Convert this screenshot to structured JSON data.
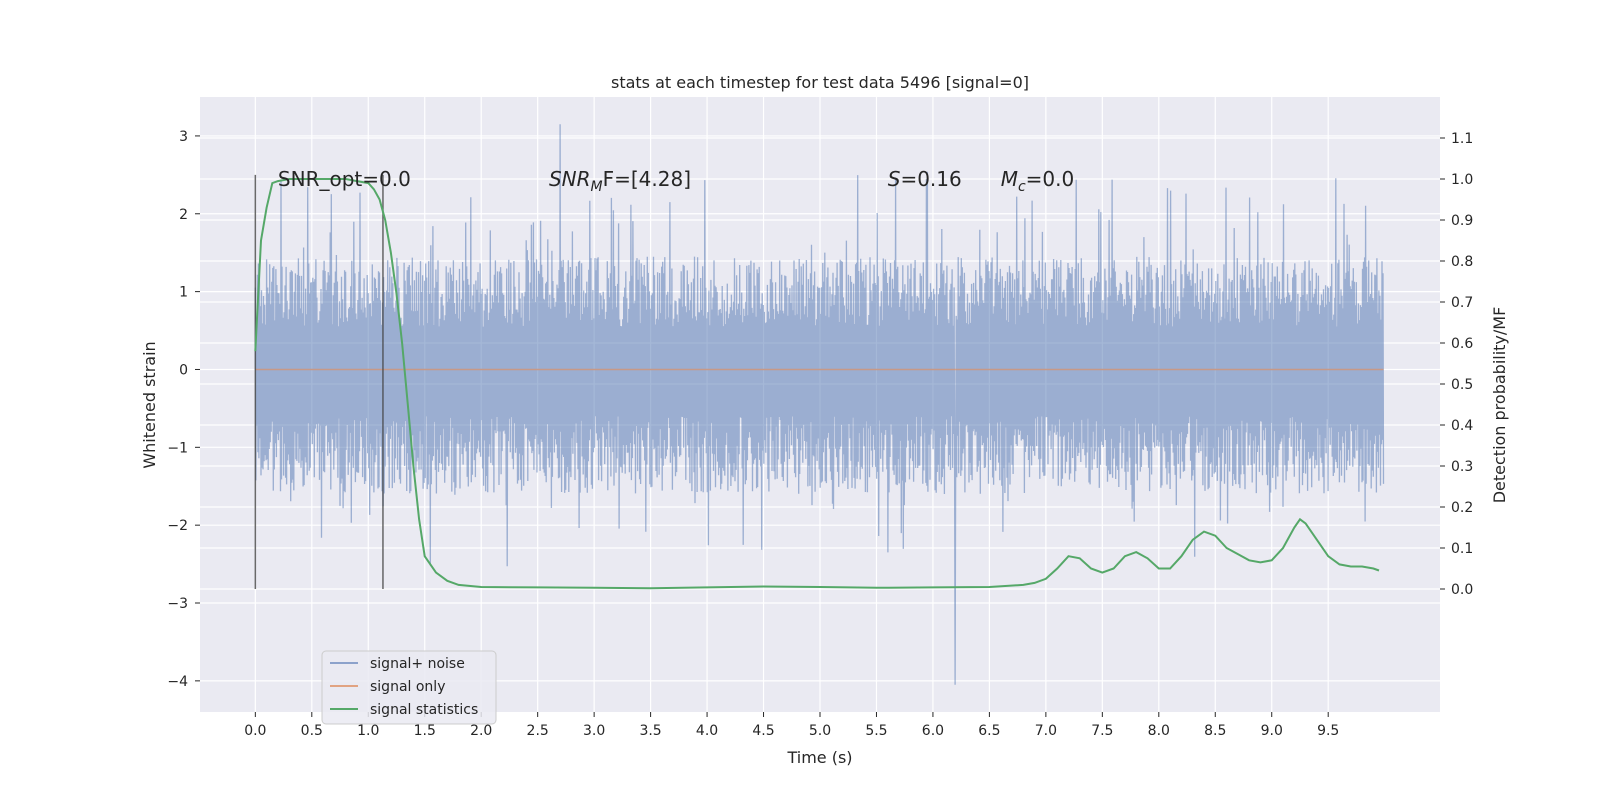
{
  "chart_data": {
    "type": "line",
    "title": "stats at each timestep for test data 5496 [signal=0]",
    "xlabel": "Time (s)",
    "ylabel": "Whitened strain",
    "ylabel_right": "Detection probability/MF",
    "xlim": [
      -0.49,
      10.49
    ],
    "ylim": [
      -4.4,
      3.5
    ],
    "ylim_right": [
      -0.3,
      1.2
    ],
    "x_ticks": [
      0.0,
      0.5,
      1.0,
      1.5,
      2.0,
      2.5,
      3.0,
      3.5,
      4.0,
      4.5,
      5.0,
      5.5,
      6.0,
      6.5,
      7.0,
      7.5,
      8.0,
      8.5,
      9.0,
      9.5
    ],
    "x_tick_labels": [
      "0.0",
      "0.5",
      "1.0",
      "1.5",
      "2.0",
      "2.5",
      "3.0",
      "3.5",
      "4.0",
      "4.5",
      "5.0",
      "5.5",
      "6.0",
      "6.5",
      "7.0",
      "7.5",
      "8.0",
      "8.5",
      "9.0",
      "9.5"
    ],
    "y_ticks": [
      -4,
      -3,
      -2,
      -1,
      0,
      1,
      2,
      3
    ],
    "y_tick_labels": [
      "−4",
      "−3",
      "−2",
      "−1",
      "0",
      "1",
      "2",
      "3"
    ],
    "y_right_ticks": [
      0.0,
      0.1,
      0.2,
      0.3,
      0.4,
      0.5,
      0.6,
      0.7,
      0.8,
      0.9,
      1.0,
      1.1
    ],
    "y_right_tick_labels": [
      "0.0",
      "0.1",
      "0.2",
      "0.3",
      "0.4",
      "0.5",
      "0.6",
      "0.7",
      "0.8",
      "0.9",
      "1.0",
      "1.1"
    ],
    "grid": true,
    "legend_position": "lower-left",
    "series": [
      {
        "name": "signal+ noise",
        "color": "#4c72b0",
        "kind": "noise",
        "x_range": [
          0.0,
          9.99
        ],
        "envelope": [
          -1.65,
          1.3
        ],
        "extremes": {
          "max": 3.15,
          "min": -4.05
        }
      },
      {
        "name": "signal only",
        "color": "#dd8452",
        "kind": "flat",
        "x_range": [
          0.0,
          9.99
        ],
        "value": 0.0
      },
      {
        "name": "signal statistics",
        "color": "#55a868",
        "axis": "right",
        "kind": "line",
        "x": [
          0.0,
          0.05,
          0.1,
          0.15,
          0.2,
          0.3,
          0.4,
          0.5,
          0.6,
          0.7,
          0.8,
          0.9,
          1.0,
          1.05,
          1.1,
          1.15,
          1.2,
          1.25,
          1.3,
          1.35,
          1.4,
          1.45,
          1.5,
          1.6,
          1.7,
          1.8,
          2.0,
          2.5,
          3.0,
          3.5,
          4.0,
          4.5,
          5.0,
          5.5,
          6.0,
          6.5,
          6.8,
          6.9,
          7.0,
          7.1,
          7.2,
          7.3,
          7.4,
          7.5,
          7.6,
          7.7,
          7.8,
          7.9,
          8.0,
          8.1,
          8.2,
          8.3,
          8.4,
          8.5,
          8.6,
          8.7,
          8.8,
          8.9,
          9.0,
          9.1,
          9.2,
          9.25,
          9.3,
          9.4,
          9.5,
          9.6,
          9.7,
          9.8,
          9.9,
          9.95
        ],
        "y": [
          0.58,
          0.85,
          0.93,
          0.99,
          0.995,
          1.0,
          1.0,
          1.0,
          1.0,
          1.0,
          1.0,
          0.995,
          0.99,
          0.975,
          0.95,
          0.9,
          0.82,
          0.72,
          0.6,
          0.45,
          0.3,
          0.17,
          0.08,
          0.04,
          0.02,
          0.01,
          0.005,
          0.004,
          0.003,
          0.002,
          0.004,
          0.006,
          0.005,
          0.003,
          0.004,
          0.005,
          0.01,
          0.015,
          0.025,
          0.05,
          0.08,
          0.075,
          0.05,
          0.04,
          0.05,
          0.08,
          0.09,
          0.075,
          0.05,
          0.05,
          0.08,
          0.12,
          0.14,
          0.13,
          0.1,
          0.085,
          0.07,
          0.065,
          0.07,
          0.1,
          0.15,
          0.17,
          0.16,
          0.12,
          0.08,
          0.06,
          0.055,
          0.055,
          0.05,
          0.045
        ]
      }
    ],
    "vlines": [
      0.0,
      1.13
    ],
    "annotations": [
      {
        "text": "SNR_opt=0.0",
        "x": 0.2
      },
      {
        "text": "SNR",
        "sub": "M",
        "rest": "F=[4.28]",
        "x": 2.6,
        "italic": true
      },
      {
        "text": "S",
        "rest": "=0.16",
        "x": 5.6,
        "italic": true
      },
      {
        "text": "M",
        "sub": "c",
        "rest": "=0.0",
        "x": 6.6,
        "italic": true
      }
    ]
  }
}
